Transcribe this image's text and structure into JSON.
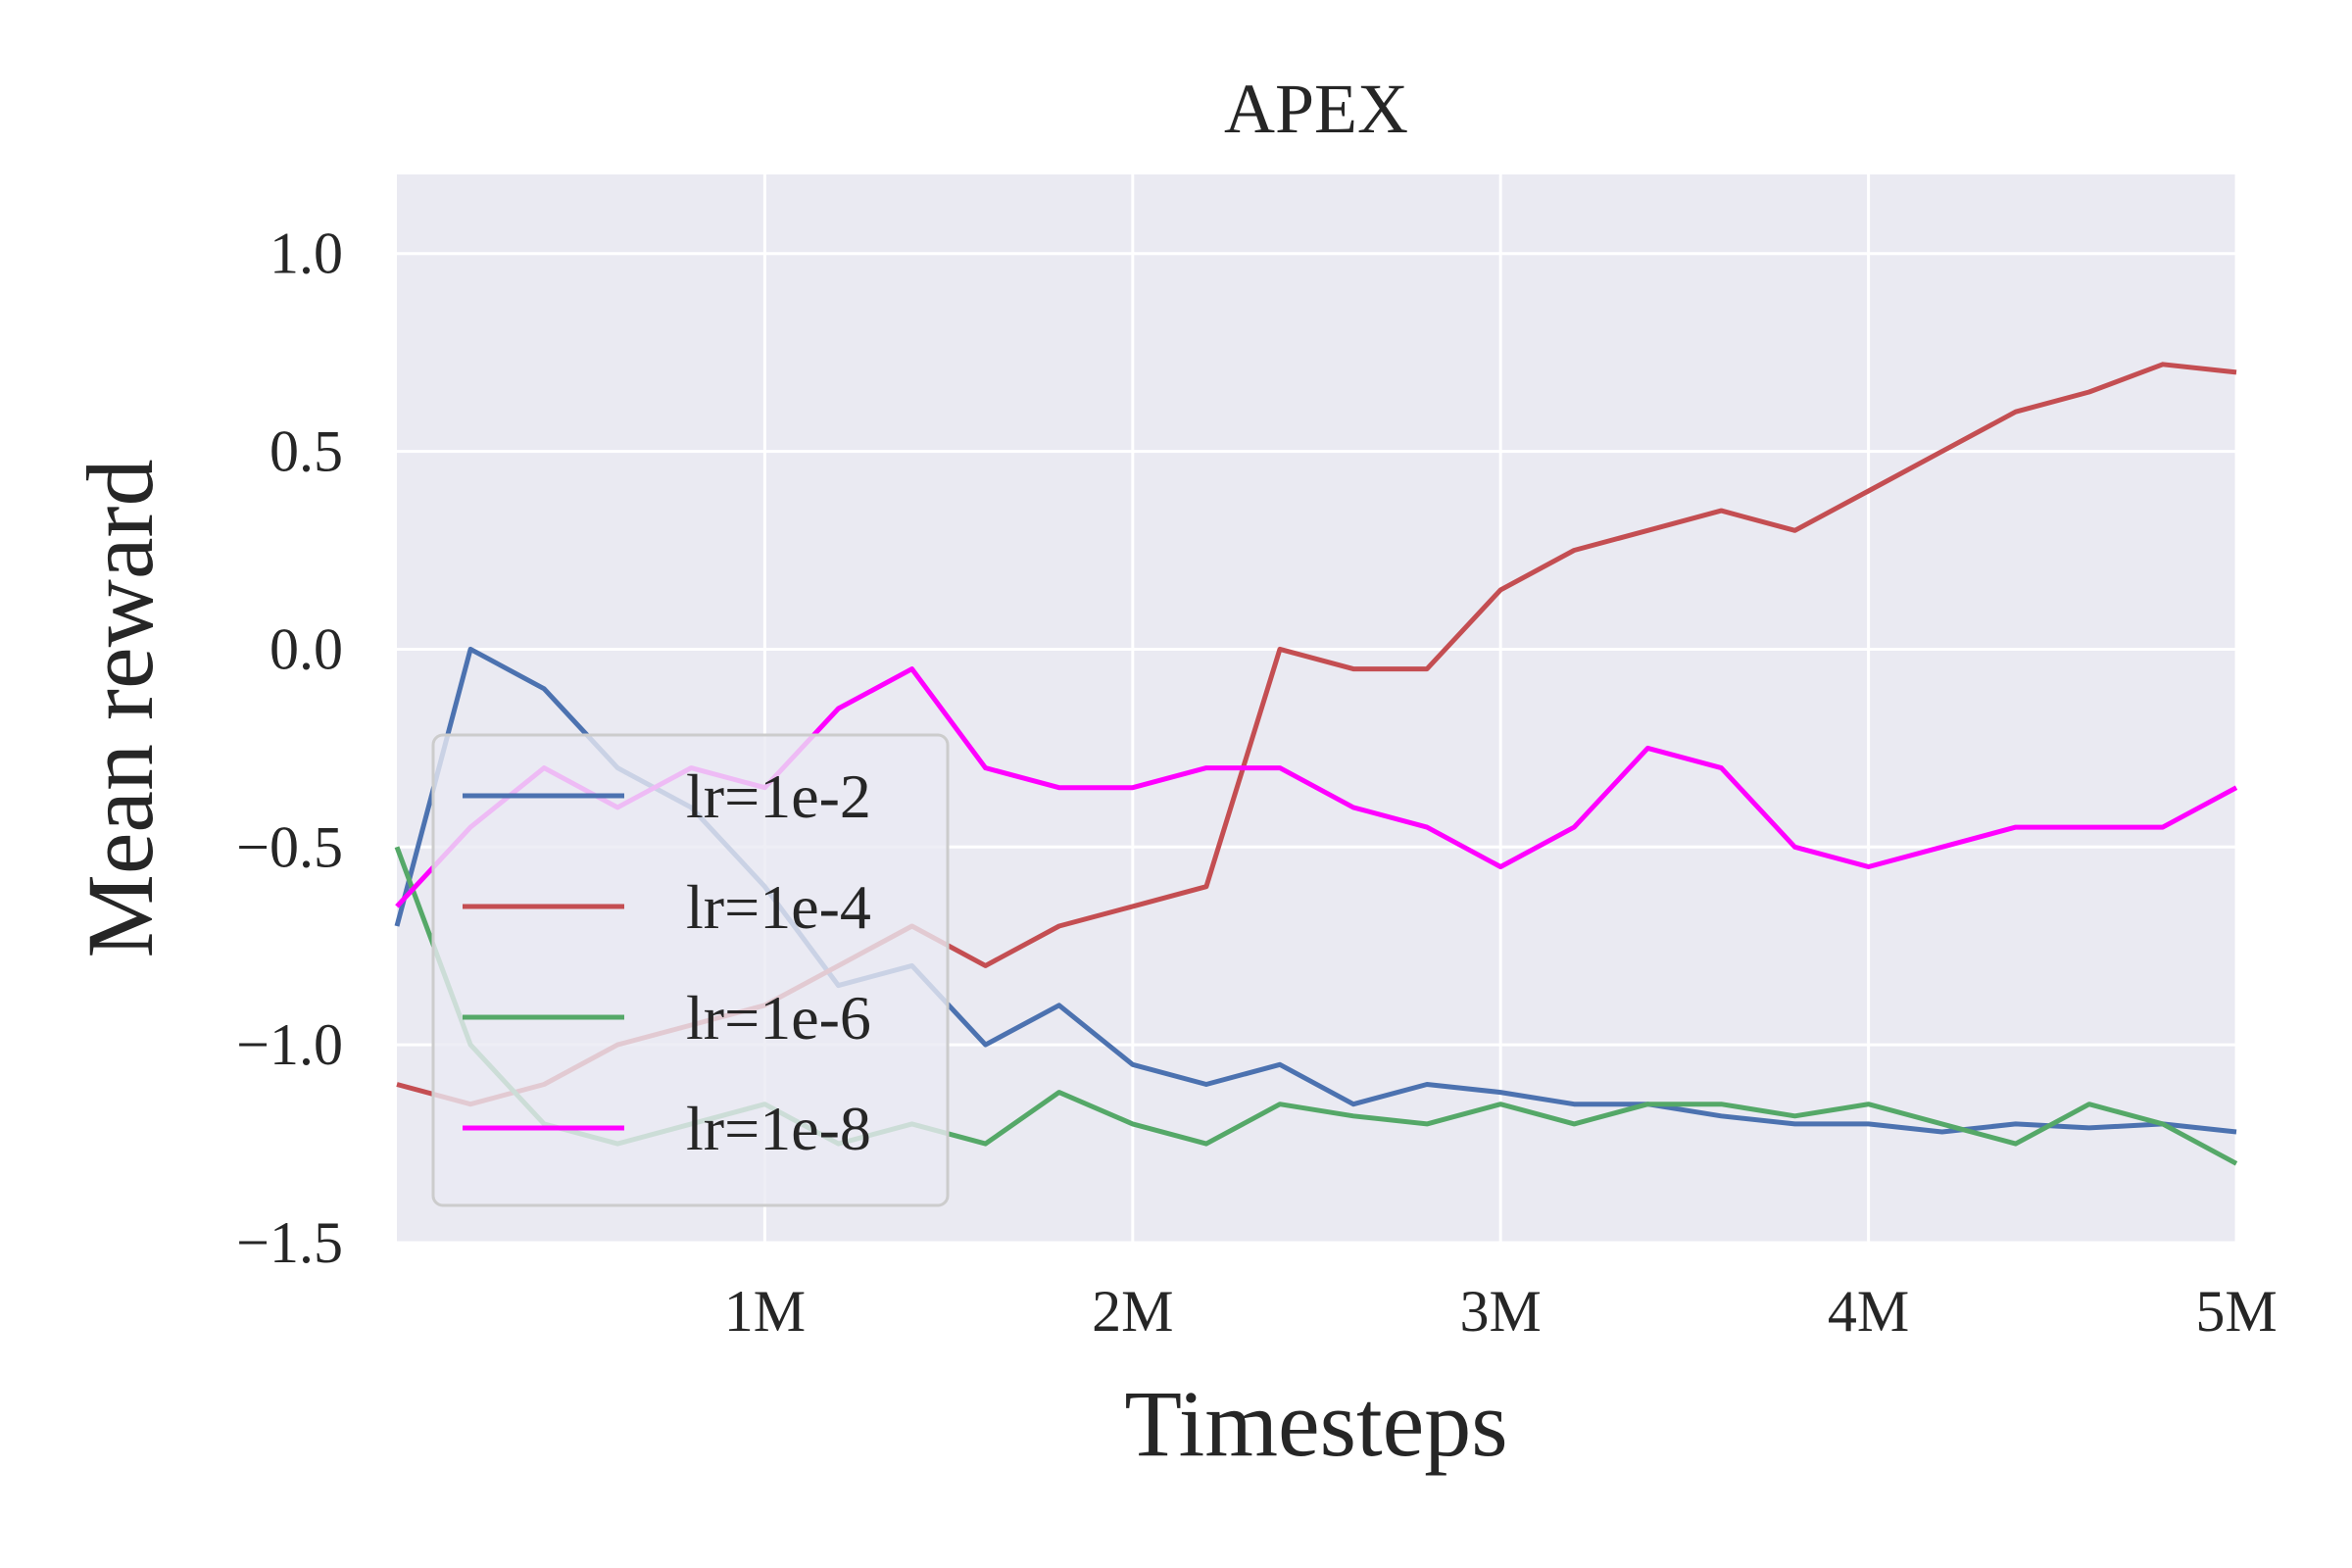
{
  "chart_data": {
    "type": "line",
    "title": "APEX",
    "xlabel": "Timesteps",
    "ylabel": "Mean reward",
    "xlim": [
      0,
      5000000
    ],
    "ylim": [
      -1.5,
      1.2
    ],
    "x_ticks": [
      1000000,
      2000000,
      3000000,
      4000000,
      5000000
    ],
    "x_tick_labels": [
      "1M",
      "2M",
      "3M",
      "4M",
      "5M"
    ],
    "y_ticks": [
      1.0,
      0.5,
      0.0,
      -0.5,
      -1.0,
      -1.5
    ],
    "y_tick_labels": [
      "1.0",
      "0.5",
      "0.0",
      "−0.5",
      "−1.0",
      "−1.5"
    ],
    "grid": true,
    "background": "#eaeaf2",
    "legend_position": "lower-left",
    "x": [
      0,
      200000,
      400000,
      600000,
      800000,
      1000000,
      1200000,
      1400000,
      1600000,
      1800000,
      2000000,
      2200000,
      2400000,
      2600000,
      2800000,
      3000000,
      3200000,
      3400000,
      3600000,
      3800000,
      4000000,
      4200000,
      4400000,
      4600000,
      4800000,
      5000000
    ],
    "series": [
      {
        "name": "lr=1e-2",
        "color": "#4c72b0",
        "values": [
          -0.7,
          0.0,
          -0.1,
          -0.3,
          -0.4,
          -0.6,
          -0.85,
          -0.8,
          -1.0,
          -0.9,
          -1.05,
          -1.1,
          -1.05,
          -1.15,
          -1.1,
          -1.12,
          -1.15,
          -1.15,
          -1.18,
          -1.2,
          -1.2,
          -1.22,
          -1.2,
          -1.21,
          -1.2,
          -1.22
        ]
      },
      {
        "name": "lr=1e-4",
        "color": "#c44e52",
        "values": [
          -1.1,
          -1.15,
          -1.1,
          -1.0,
          -0.95,
          -0.9,
          -0.8,
          -0.7,
          -0.8,
          -0.7,
          -0.65,
          -0.6,
          0.0,
          -0.05,
          -0.05,
          0.15,
          0.25,
          0.3,
          0.35,
          0.3,
          0.4,
          0.5,
          0.6,
          0.65,
          0.72,
          0.7
        ]
      },
      {
        "name": "lr=1e-6",
        "color": "#55a868",
        "values": [
          -0.5,
          -1.0,
          -1.2,
          -1.25,
          -1.2,
          -1.15,
          -1.25,
          -1.2,
          -1.25,
          -1.12,
          -1.2,
          -1.25,
          -1.15,
          -1.18,
          -1.2,
          -1.15,
          -1.2,
          -1.15,
          -1.15,
          -1.18,
          -1.15,
          -1.2,
          -1.25,
          -1.15,
          -1.2,
          -1.3
        ]
      },
      {
        "name": "lr=1e-8",
        "color": "#ff00ff",
        "values": [
          -0.65,
          -0.45,
          -0.3,
          -0.4,
          -0.3,
          -0.35,
          -0.15,
          -0.05,
          -0.3,
          -0.35,
          -0.35,
          -0.3,
          -0.3,
          -0.4,
          -0.45,
          -0.55,
          -0.45,
          -0.25,
          -0.3,
          -0.5,
          -0.55,
          -0.5,
          -0.45,
          -0.45,
          -0.45,
          -0.35
        ]
      }
    ]
  }
}
